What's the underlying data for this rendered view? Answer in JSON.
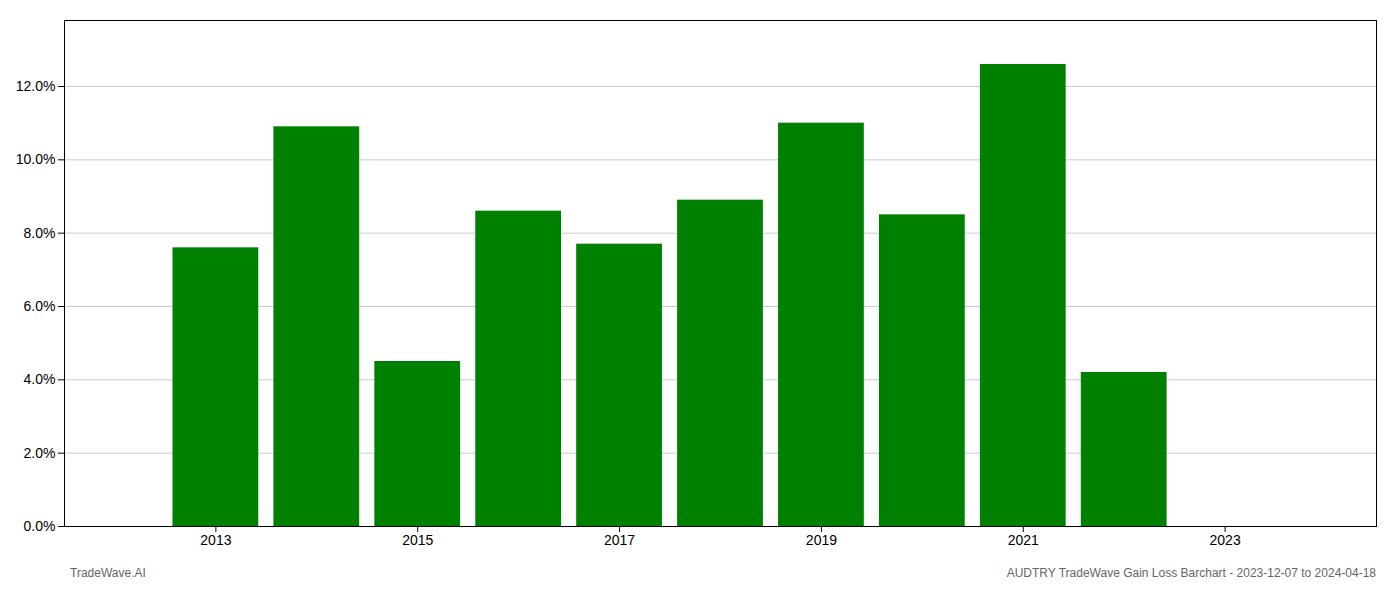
{
  "chart_data": {
    "type": "bar",
    "x": [
      2013,
      2014,
      2015,
      2016,
      2017,
      2018,
      2019,
      2020,
      2021,
      2022
    ],
    "values": [
      0.076,
      0.109,
      0.045,
      0.086,
      0.077,
      0.089,
      0.11,
      0.085,
      0.126,
      0.042
    ],
    "color": "#008000",
    "xlim": [
      2011.5,
      2024.5
    ],
    "xticks": [
      2013,
      2015,
      2017,
      2019,
      2021,
      2023
    ],
    "ylim": [
      0,
      0.138
    ],
    "yticks": [
      {
        "value": 0.0,
        "label": "0.0%"
      },
      {
        "value": 0.02,
        "label": "2.0%"
      },
      {
        "value": 0.04,
        "label": "4.0%"
      },
      {
        "value": 0.06,
        "label": "6.0%"
      },
      {
        "value": 0.08,
        "label": "8.0%"
      },
      {
        "value": 0.1,
        "label": "10.0%"
      },
      {
        "value": 0.12,
        "label": "12.0%"
      }
    ],
    "grid": true,
    "annotations": [
      "TradeWave.AI",
      "AUDTRY TradeWave Gain Loss Barchart - 2023-12-07 to 2024-04-18"
    ]
  }
}
